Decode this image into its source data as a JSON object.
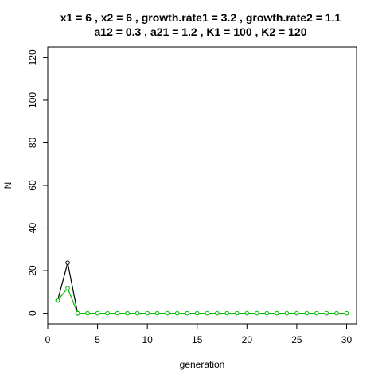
{
  "chart_data": {
    "type": "scatter",
    "title_line1": "x1 = 6 , x2 =  6 , growth.rate1 =  3.2 , growth.rate2 =  1.1",
    "title_line2": "a12 =  0.3 , a21 =  1.2 , K1 =  100 , K2 =  120",
    "xlabel": "generation",
    "ylabel": "N",
    "xlim": [
      0,
      31
    ],
    "ylim": [
      -5,
      125
    ],
    "x_ticks": [
      0,
      5,
      10,
      15,
      20,
      25,
      30
    ],
    "y_ticks": [
      0,
      20,
      40,
      60,
      80,
      100,
      120
    ],
    "grid": false,
    "series": [
      {
        "color": "#000000",
        "marker": "open-circle",
        "line": true,
        "x": [
          1,
          2,
          3
        ],
        "y": [
          6,
          23.7,
          0
        ]
      },
      {
        "color": "#00bb00",
        "marker": "open-circle",
        "line": true,
        "x": [
          1,
          2,
          3,
          4,
          5,
          6,
          7,
          8,
          9,
          10,
          11,
          12,
          13,
          14,
          15,
          16,
          17,
          18,
          19,
          20,
          21,
          22,
          23,
          24,
          25,
          26,
          27,
          28,
          29,
          30
        ],
        "y": [
          6,
          11.8,
          0,
          0,
          0,
          0,
          0,
          0,
          0,
          0,
          0,
          0,
          0,
          0,
          0,
          0,
          0,
          0,
          0,
          0,
          0,
          0,
          0,
          0,
          0,
          0,
          0,
          0,
          0,
          0
        ]
      }
    ]
  }
}
